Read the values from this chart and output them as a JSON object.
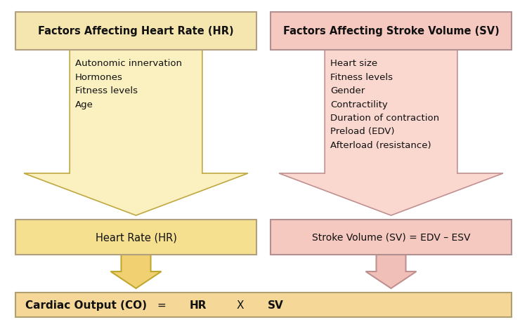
{
  "background_color": "#ffffff",
  "left_box_header": "Factors Affecting Heart Rate (HR)",
  "left_box_header_bg": "#F5E6B0",
  "left_box_header_border": "#B0A080",
  "left_arrow_bg": "#FAF0C0",
  "left_arrow_border": "#C0A840",
  "left_factors": [
    "Autonomic innervation",
    "Hormones",
    "Fitness levels",
    "Age"
  ],
  "left_result_text": "Heart Rate (HR)",
  "left_result_bg": "#F5E090",
  "left_result_border": "#B0A080",
  "right_box_header": "Factors Affecting Stroke Volume (SV)",
  "right_box_header_bg": "#F5C8C0",
  "right_box_header_border": "#B09090",
  "right_arrow_bg": "#FAD8D0",
  "right_arrow_border": "#C09090",
  "right_factors": [
    "Heart size",
    "Fitness levels",
    "Gender",
    "Contractility",
    "Duration of contraction",
    "Preload (EDV)",
    "Afterload (resistance)"
  ],
  "right_result_text": "Stroke Volume (SV) = EDV – ESV",
  "right_result_bg": "#F5C8C0",
  "right_result_border": "#B09090",
  "bottom_box_bg": "#F5D898",
  "bottom_box_border": "#B0A070",
  "small_arrow_left_bg": "#F0D070",
  "small_arrow_left_border": "#C0A830",
  "small_arrow_right_bg": "#F0C0B8",
  "small_arrow_right_border": "#C09090"
}
